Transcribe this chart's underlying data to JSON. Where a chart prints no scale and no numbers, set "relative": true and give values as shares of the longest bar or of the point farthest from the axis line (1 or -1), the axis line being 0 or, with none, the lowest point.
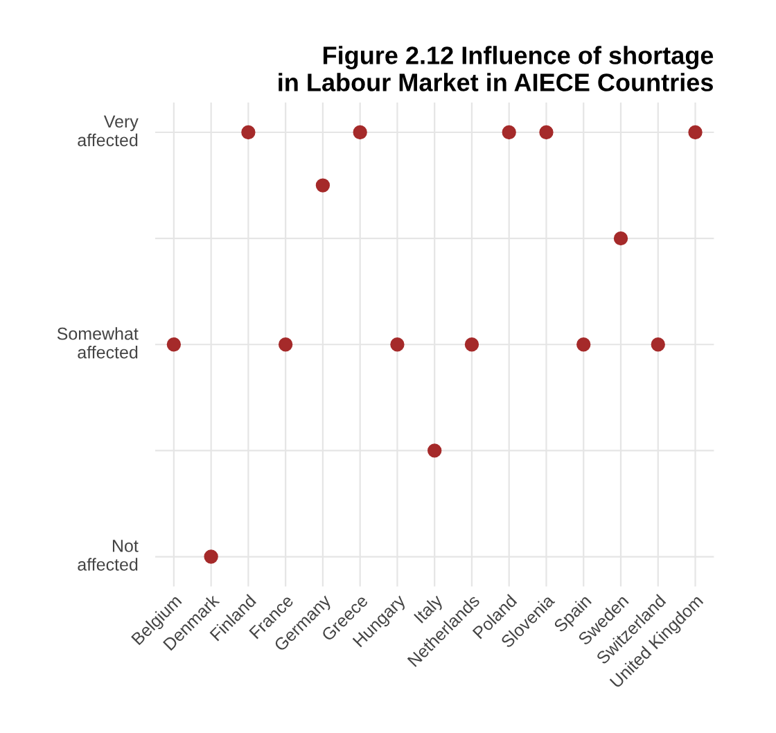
{
  "chart_data": {
    "type": "scatter",
    "title": "Figure 2.12 Influence of shortage\nin Labour Market in AIECE Countries",
    "categories": [
      "Belgium",
      "Denmark",
      "Finland",
      "France",
      "Germany",
      "Greece",
      "Hungary",
      "Italy",
      "Netherlands",
      "Poland",
      "Slovenia",
      "Spain",
      "Sweden",
      "Switzerland",
      "United Kingdom"
    ],
    "values": [
      0.5,
      0,
      1,
      0.5,
      0.875,
      1,
      0.5,
      0.25,
      0.5,
      1,
      1,
      0.5,
      0.75,
      0.5,
      1
    ],
    "relative": true,
    "color": "#a52a2a",
    "marker": "circle",
    "annotations": [
      "Not\naffected",
      "Somewhat\naffected",
      "Very\naffected"
    ],
    "grid": true
  }
}
